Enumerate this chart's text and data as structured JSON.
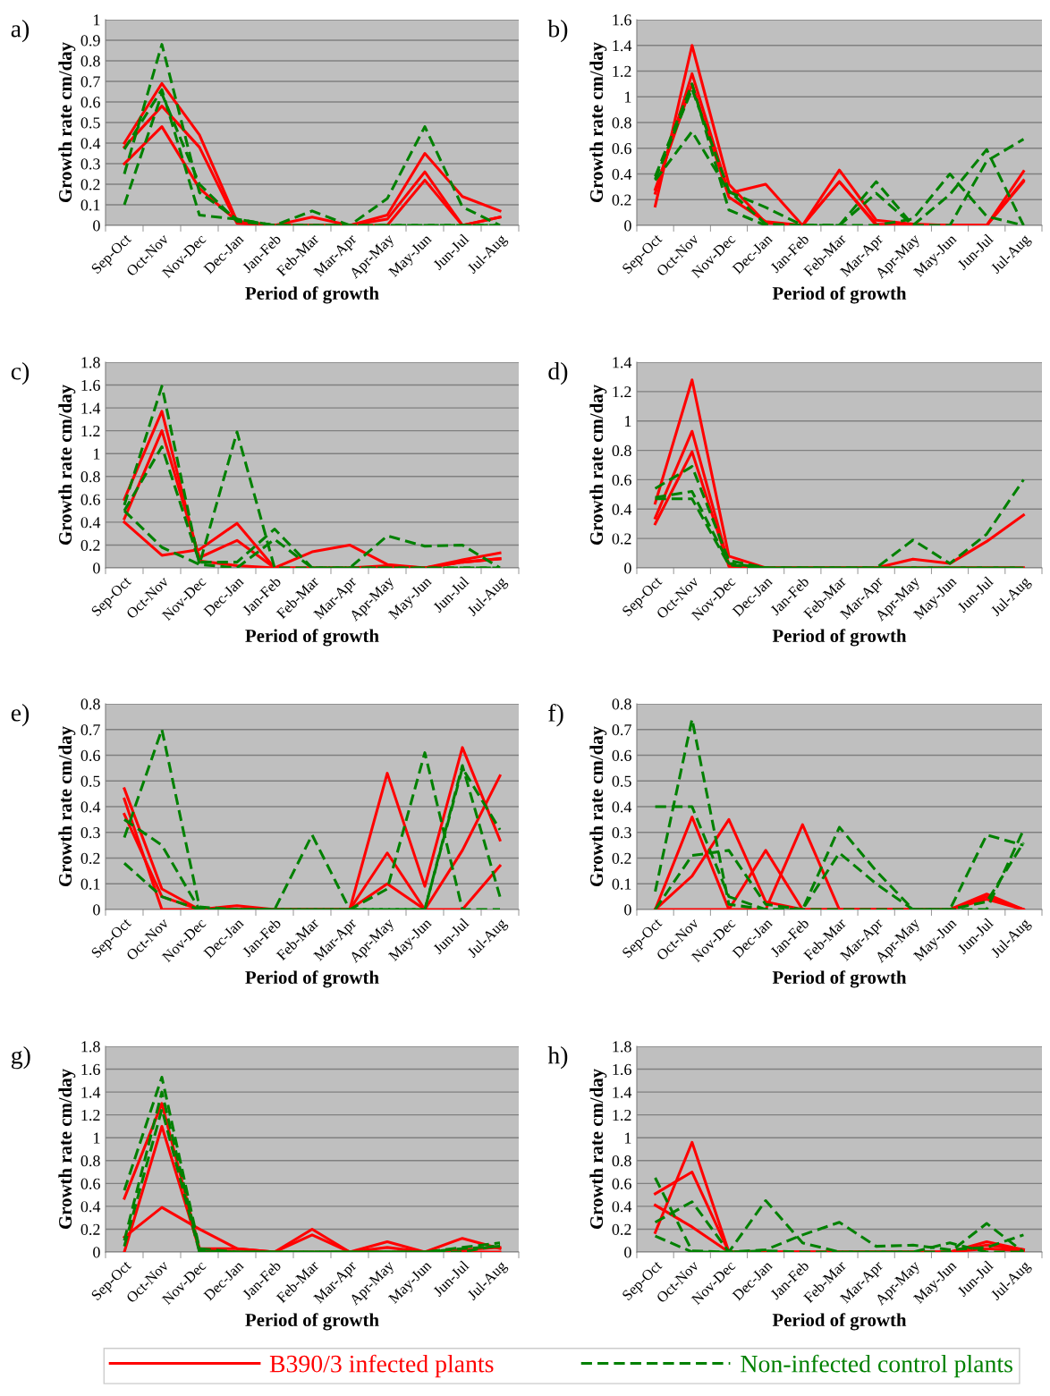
{
  "chart_data": [
    {
      "type": "line",
      "title": "a)",
      "xlabel": "Period of growth",
      "ylabel": "Growth rate cm/day",
      "categories": [
        "Sep-Oct",
        "Oct-Nov",
        "Nov-Dec",
        "Dec-Jan",
        "Jan-Feb",
        "Feb-Mar",
        "Mar-Apr",
        "Apr-May",
        "May-Jun",
        "Jun-Jul",
        "Jul-Aug"
      ],
      "ylim": [
        0,
        1
      ],
      "yticks": [
        0,
        0.1,
        0.2,
        0.3,
        0.4,
        0.5,
        0.6,
        0.7,
        0.8,
        0.9,
        1
      ],
      "grid": "y",
      "marker": "none",
      "series": [
        {
          "color": "#ff0000",
          "line_style": "solid",
          "values": [
            0.4,
            0.69,
            0.44,
            0.02,
            0,
            0.04,
            0,
            0.05,
            0.35,
            0.14,
            0.07
          ]
        },
        {
          "color": "#ff0000",
          "line_style": "solid",
          "values": [
            0.38,
            0.58,
            0.38,
            0.01,
            0,
            0,
            0,
            0.03,
            0.26,
            0,
            0.04
          ]
        },
        {
          "color": "#ff0000",
          "line_style": "solid",
          "values": [
            0.3,
            0.48,
            0.18,
            0.02,
            0,
            0,
            0,
            0,
            0.22,
            0,
            0.04
          ]
        },
        {
          "color": "#008000",
          "line_style": "dashed",
          "values": [
            0.25,
            0.88,
            0.16,
            0.03,
            0,
            0.07,
            0,
            0.13,
            0.48,
            0.09,
            0
          ]
        },
        {
          "color": "#008000",
          "line_style": "dashed",
          "values": [
            0.37,
            0.66,
            0.05,
            0.03,
            0,
            0,
            0,
            0,
            0,
            0,
            0
          ]
        },
        {
          "color": "#008000",
          "line_style": "dashed",
          "values": [
            0.1,
            0.64,
            0.2,
            0.02,
            0,
            0,
            0,
            0,
            0,
            0,
            0
          ]
        }
      ]
    },
    {
      "type": "line",
      "title": "b)",
      "xlabel": "Period of growth",
      "ylabel": "Growth rate cm/day",
      "categories": [
        "Sep-Oct",
        "Oct-Nov",
        "Nov-Dec",
        "Dec-Jan",
        "Jan-Feb",
        "Feb-Mar",
        "Mar-Apr",
        "Apr-May",
        "May-Jun",
        "Jun-Jul",
        "Jul-Aug"
      ],
      "ylim": [
        0,
        1.6
      ],
      "yticks": [
        0,
        0.2,
        0.4,
        0.6,
        0.8,
        1,
        1.2,
        1.4,
        1.6
      ],
      "grid": "y",
      "marker": "none",
      "series": [
        {
          "color": "#ff0000",
          "line_style": "solid",
          "values": [
            0.15,
            1.4,
            0.32,
            0.02,
            0,
            0.43,
            0.04,
            0.01,
            0,
            0,
            0.42
          ]
        },
        {
          "color": "#ff0000",
          "line_style": "solid",
          "values": [
            0.25,
            1.18,
            0.25,
            0.32,
            0,
            0.34,
            0,
            0,
            0,
            0,
            0.35
          ]
        },
        {
          "color": "#ff0000",
          "line_style": "solid",
          "values": [
            0.28,
            1.1,
            0.22,
            0.03,
            0,
            0.34,
            0.01,
            0,
            0,
            0,
            0.34
          ]
        },
        {
          "color": "#008000",
          "line_style": "dashed",
          "values": [
            0.35,
            0.73,
            0.26,
            0.14,
            0,
            0,
            0,
            0.05,
            0.4,
            0.07,
            0
          ]
        },
        {
          "color": "#008000",
          "line_style": "dashed",
          "values": [
            0.38,
            1.1,
            0.12,
            0,
            0,
            0,
            0.34,
            0,
            0.24,
            0.59,
            0
          ]
        },
        {
          "color": "#008000",
          "line_style": "dashed",
          "values": [
            0.36,
            1.06,
            0.27,
            0.01,
            0,
            0,
            0.25,
            0,
            0,
            0.5,
            0.67
          ]
        }
      ]
    },
    {
      "type": "line",
      "title": "c)",
      "xlabel": "Period of growth",
      "ylabel": "Growth rate cm/day",
      "categories": [
        "Sep-Oct",
        "Oct-Nov",
        "Nov-Dec",
        "Dec-Jan",
        "Jan-Feb",
        "Feb-Mar",
        "Mar-Apr",
        "Apr-May",
        "May-Jun",
        "Jun-Jul",
        "Jul-Aug"
      ],
      "ylim": [
        0,
        1.8
      ],
      "yticks": [
        0,
        0.2,
        0.4,
        0.6,
        0.8,
        1,
        1.2,
        1.4,
        1.6,
        1.8
      ],
      "grid": "y",
      "marker": "none",
      "series": [
        {
          "color": "#ff0000",
          "line_style": "solid",
          "values": [
            0.6,
            1.37,
            0.06,
            0.02,
            0,
            0.14,
            0.2,
            0.03,
            0,
            0.07,
            0.13
          ]
        },
        {
          "color": "#ff0000",
          "line_style": "solid",
          "values": [
            0.43,
            1.2,
            0.09,
            0.24,
            0,
            0,
            0,
            0.02,
            0,
            0.05,
            0.08
          ]
        },
        {
          "color": "#ff0000",
          "line_style": "solid",
          "values": [
            0.4,
            0.11,
            0.16,
            0.39,
            0,
            0,
            0,
            0,
            0,
            0.05,
            0.08
          ]
        },
        {
          "color": "#008000",
          "line_style": "dashed",
          "values": [
            0.55,
            1.59,
            0.03,
            1.19,
            0,
            0,
            0,
            0,
            0,
            0,
            0
          ]
        },
        {
          "color": "#008000",
          "line_style": "dashed",
          "values": [
            0.5,
            1.06,
            0.05,
            0.05,
            0.34,
            0,
            0,
            0.28,
            0.19,
            0.2,
            0
          ]
        },
        {
          "color": "#008000",
          "line_style": "dashed",
          "values": [
            0.5,
            0.18,
            0.03,
            0,
            0.25,
            0,
            0,
            0,
            0,
            0,
            0
          ]
        }
      ]
    },
    {
      "type": "line",
      "title": "d)",
      "xlabel": "Period of growth",
      "ylabel": "Growth rate cm/day",
      "categories": [
        "Sep-Oct",
        "Oct-Nov",
        "Nov-Dec",
        "Dec-Jan",
        "Jan-Feb",
        "Feb-Mar",
        "Mar-Apr",
        "Apr-May",
        "May-Jun",
        "Jun-Jul",
        "Jul-Aug"
      ],
      "ylim": [
        0,
        1.4
      ],
      "yticks": [
        0,
        0.2,
        0.4,
        0.6,
        0.8,
        1,
        1.2,
        1.4
      ],
      "grid": "y",
      "marker": "none",
      "series": [
        {
          "color": "#ff0000",
          "line_style": "solid",
          "values": [
            0.44,
            1.28,
            0.08,
            0,
            0,
            0,
            0,
            0.06,
            0.03,
            0.18,
            0.36
          ]
        },
        {
          "color": "#ff0000",
          "line_style": "solid",
          "values": [
            0.34,
            0.93,
            0.02,
            0,
            0,
            0,
            0,
            0,
            0,
            0,
            0
          ]
        },
        {
          "color": "#ff0000",
          "line_style": "solid",
          "values": [
            0.3,
            0.79,
            0.01,
            0,
            0,
            0,
            0,
            0,
            0,
            0,
            0
          ]
        },
        {
          "color": "#008000",
          "line_style": "dashed",
          "values": [
            0.54,
            0.69,
            0.05,
            0,
            0,
            0,
            0,
            0.19,
            0.03,
            0.23,
            0.6
          ]
        },
        {
          "color": "#008000",
          "line_style": "dashed",
          "values": [
            0.48,
            0.52,
            0.03,
            0,
            0,
            0,
            0,
            0,
            0,
            0,
            0
          ]
        },
        {
          "color": "#008000",
          "line_style": "dashed",
          "values": [
            0.47,
            0.47,
            0.02,
            0,
            0,
            0,
            0,
            0,
            0,
            0,
            0
          ]
        }
      ]
    },
    {
      "type": "line",
      "title": "e)",
      "xlabel": "Period of growth",
      "ylabel": "Growth rate cm/day",
      "categories": [
        "Sep-Oct",
        "Oct-Nov",
        "Nov-Dec",
        "Dec-Jan",
        "Jan-Feb",
        "Feb-Mar",
        "Mar-Apr",
        "Apr-May",
        "May-Jun",
        "Jun-Jul",
        "Jul-Aug"
      ],
      "ylim": [
        0,
        0.8
      ],
      "yticks": [
        0,
        0.1,
        0.2,
        0.3,
        0.4,
        0.5,
        0.6,
        0.7,
        0.8
      ],
      "grid": "y",
      "marker": "none",
      "series": [
        {
          "color": "#ff0000",
          "line_style": "solid",
          "values": [
            0.47,
            0.08,
            0,
            0.015,
            0,
            0,
            0,
            0.53,
            0.09,
            0.63,
            0.27
          ]
        },
        {
          "color": "#ff0000",
          "line_style": "solid",
          "values": [
            0.43,
            0,
            0,
            0,
            0,
            0,
            0,
            0.22,
            0,
            0.23,
            0.52
          ]
        },
        {
          "color": "#ff0000",
          "line_style": "solid",
          "values": [
            0.37,
            0.05,
            0,
            0,
            0,
            0,
            0,
            0.1,
            0,
            0,
            0.17
          ]
        },
        {
          "color": "#008000",
          "line_style": "dashed",
          "values": [
            0.28,
            0.7,
            0.01,
            0,
            0,
            0,
            0,
            0,
            0,
            0.55,
            0.31
          ]
        },
        {
          "color": "#008000",
          "line_style": "dashed",
          "values": [
            0.35,
            0.25,
            0,
            0,
            0,
            0.29,
            0,
            0.08,
            0.61,
            0,
            0
          ]
        },
        {
          "color": "#008000",
          "line_style": "dashed",
          "values": [
            0.18,
            0.05,
            0,
            0,
            0,
            0,
            0,
            0,
            0,
            0.56,
            0.05
          ]
        }
      ]
    },
    {
      "type": "line",
      "title": "f)",
      "xlabel": "Period of growth",
      "ylabel": "Growth rate cm/day",
      "categories": [
        "Sep-Oct",
        "Oct-Nov",
        "Nov-Dec",
        "Dec-Jan",
        "Jan-Feb",
        "Feb-Mar",
        "Mar-Apr",
        "Apr-May",
        "May-Jun",
        "Jun-Jul",
        "Jul-Aug"
      ],
      "ylim": [
        0,
        0.8
      ],
      "yticks": [
        0,
        0.1,
        0.2,
        0.3,
        0.4,
        0.5,
        0.6,
        0.7,
        0.8
      ],
      "grid": "y",
      "marker": "none",
      "series": [
        {
          "color": "#ff0000",
          "line_style": "solid",
          "values": [
            0,
            0.36,
            0,
            0.23,
            0,
            0,
            0,
            0,
            0,
            0.05,
            0
          ]
        },
        {
          "color": "#ff0000",
          "line_style": "solid",
          "values": [
            0,
            0.13,
            0.35,
            0.03,
            0,
            0,
            0,
            0,
            0,
            0.06,
            0
          ]
        },
        {
          "color": "#ff0000",
          "line_style": "solid",
          "values": [
            0,
            0,
            0,
            0,
            0.33,
            0,
            0,
            0,
            0,
            0.04,
            0
          ]
        },
        {
          "color": "#008000",
          "line_style": "dashed",
          "values": [
            0.4,
            0.4,
            0.05,
            0,
            0,
            0.32,
            0.15,
            0,
            0,
            0,
            0.31
          ]
        },
        {
          "color": "#008000",
          "line_style": "dashed",
          "values": [
            0.07,
            0.74,
            0.02,
            0,
            0,
            0.22,
            0.1,
            0,
            0,
            0.29,
            0.25
          ]
        },
        {
          "color": "#008000",
          "line_style": "dashed",
          "values": [
            0,
            0.21,
            0.23,
            0.02,
            0,
            0,
            0,
            0,
            0,
            0.03,
            0.26
          ]
        }
      ]
    },
    {
      "type": "line",
      "title": "g)",
      "xlabel": "Period of growth",
      "ylabel": "Growth rate cm/day",
      "categories": [
        "Sep-Oct",
        "Oct-Nov",
        "Nov-Dec",
        "Dec-Jan",
        "Jan-Feb",
        "Feb-Mar",
        "Mar-Apr",
        "Apr-May",
        "May-Jun",
        "Jun-Jul",
        "Jul-Aug"
      ],
      "ylim": [
        0,
        1.8
      ],
      "yticks": [
        0,
        0.2,
        0.4,
        0.6,
        0.8,
        1,
        1.2,
        1.4,
        1.6,
        1.8
      ],
      "grid": "y",
      "marker": "none",
      "series": [
        {
          "color": "#ff0000",
          "line_style": "solid",
          "values": [
            0.47,
            1.3,
            0.03,
            0.03,
            0,
            0.2,
            0,
            0.09,
            0,
            0.12,
            0.03
          ]
        },
        {
          "color": "#ff0000",
          "line_style": "solid",
          "values": [
            0,
            1.1,
            0.02,
            0,
            0,
            0.15,
            0,
            0.04,
            0,
            0.02,
            0.04
          ]
        },
        {
          "color": "#ff0000",
          "line_style": "solid",
          "values": [
            0.13,
            0.39,
            0.2,
            0.03,
            0,
            0,
            0,
            0,
            0,
            0,
            0
          ]
        },
        {
          "color": "#008000",
          "line_style": "dashed",
          "values": [
            0.54,
            1.53,
            0.03,
            0,
            0,
            0,
            0,
            0,
            0,
            0.04,
            0.08
          ]
        },
        {
          "color": "#008000",
          "line_style": "dashed",
          "values": [
            0.1,
            1.4,
            0.01,
            0,
            0,
            0,
            0,
            0,
            0,
            0.03,
            0.05
          ]
        },
        {
          "color": "#008000",
          "line_style": "dashed",
          "values": [
            0.05,
            1.25,
            0,
            0,
            0,
            0,
            0,
            0,
            0,
            0,
            0.06
          ]
        }
      ]
    },
    {
      "type": "line",
      "title": "h)",
      "xlabel": "Period of growth",
      "ylabel": "Growth rate cm/day",
      "categories": [
        "Sep-Oct",
        "Oct-Nov",
        "Nov-Dec",
        "Dec-Jan",
        "Jan-Feb",
        "Feb-Mar",
        "Mar-Apr",
        "Apr-May",
        "May-Jun",
        "Jun-Jul",
        "Jul-Aug"
      ],
      "ylim": [
        0,
        1.8
      ],
      "yticks": [
        0,
        0.2,
        0.4,
        0.6,
        0.8,
        1,
        1.2,
        1.4,
        1.6,
        1.8
      ],
      "grid": "y",
      "marker": "none",
      "legend": "bottom",
      "series": [
        {
          "name": "B390/3 infected plants",
          "color": "#ff0000",
          "line_style": "solid",
          "values": [
            0.51,
            0.7,
            0,
            0,
            0,
            0,
            0,
            0,
            0,
            0.06,
            0.02
          ]
        },
        {
          "color": "#ff0000",
          "line_style": "solid",
          "values": [
            0.17,
            0.96,
            0,
            0,
            0,
            0,
            0,
            0,
            0,
            0.09,
            0.02
          ]
        },
        {
          "color": "#ff0000",
          "line_style": "solid",
          "values": [
            0.41,
            0.22,
            0,
            0,
            0,
            0,
            0,
            0,
            0,
            0.03,
            0.01
          ]
        },
        {
          "name": "Non-infected control plants",
          "color": "#008000",
          "line_style": "dashed",
          "values": [
            0.65,
            0.01,
            0,
            0.45,
            0.08,
            0,
            0,
            0,
            0,
            0.25,
            0
          ]
        },
        {
          "color": "#008000",
          "line_style": "dashed",
          "values": [
            0.26,
            0.44,
            0,
            0.02,
            0.15,
            0.26,
            0.05,
            0.06,
            0.02,
            0.04,
            0.15
          ]
        },
        {
          "color": "#008000",
          "line_style": "dashed",
          "values": [
            0.14,
            0,
            0,
            0.01,
            0,
            0,
            0,
            0,
            0.08,
            0,
            0
          ]
        }
      ]
    }
  ]
}
